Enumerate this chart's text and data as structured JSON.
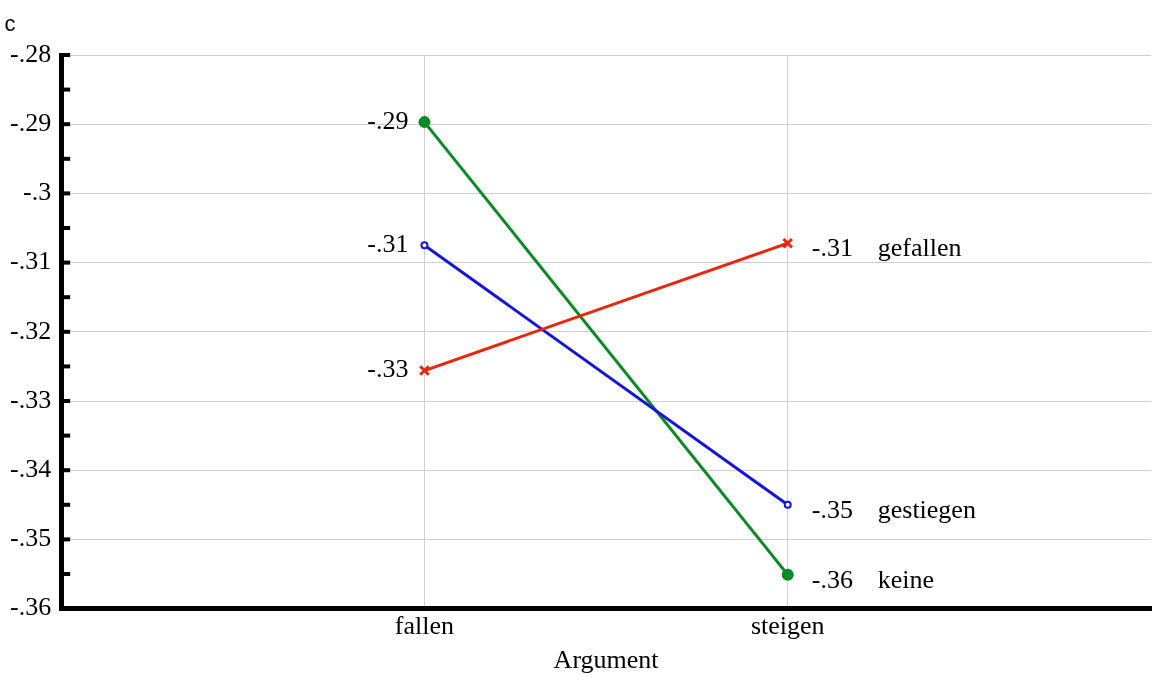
{
  "chart_data": {
    "type": "line",
    "xlabel": "Argument",
    "ylabel": "c",
    "categories": [
      "fallen",
      "steigen"
    ],
    "series": [
      {
        "name": "gefallen",
        "color": "#e8260e",
        "values": [
          -0.3256,
          -0.3072
        ],
        "value_labels": [
          "-.33",
          "-.31"
        ],
        "marker": "cross"
      },
      {
        "name": "gestiegen",
        "color": "#1515d8",
        "values": [
          -0.3075,
          -0.345
        ],
        "value_labels": [
          "-.31",
          "-.35"
        ],
        "marker": "circle"
      },
      {
        "name": "keine",
        "color": "#0a8a25",
        "values": [
          -0.2897,
          -0.3551
        ],
        "value_labels": [
          "-.29",
          "-.36"
        ],
        "marker": "circle"
      }
    ],
    "ylim": [
      -0.36,
      -0.28
    ],
    "yticks": [
      {
        "value": -0.36,
        "label": "-.36"
      },
      {
        "value": -0.355,
        "label": null
      },
      {
        "value": -0.35,
        "label": "-.35"
      },
      {
        "value": -0.345,
        "label": null
      },
      {
        "value": -0.34,
        "label": "-.34"
      },
      {
        "value": -0.335,
        "label": null
      },
      {
        "value": -0.33,
        "label": "-.33"
      },
      {
        "value": -0.325,
        "label": null
      },
      {
        "value": -0.32,
        "label": "-.32"
      },
      {
        "value": -0.315,
        "label": null
      },
      {
        "value": -0.31,
        "label": "-.31"
      },
      {
        "value": -0.305,
        "label": null
      },
      {
        "value": -0.3,
        "label": "-.3"
      },
      {
        "value": -0.295,
        "label": null
      },
      {
        "value": -0.29,
        "label": "-.29"
      },
      {
        "value": -0.285,
        "label": null
      },
      {
        "value": -0.28,
        "label": "-.28"
      }
    ],
    "grid": true,
    "legend": false,
    "line_style": "solid"
  }
}
